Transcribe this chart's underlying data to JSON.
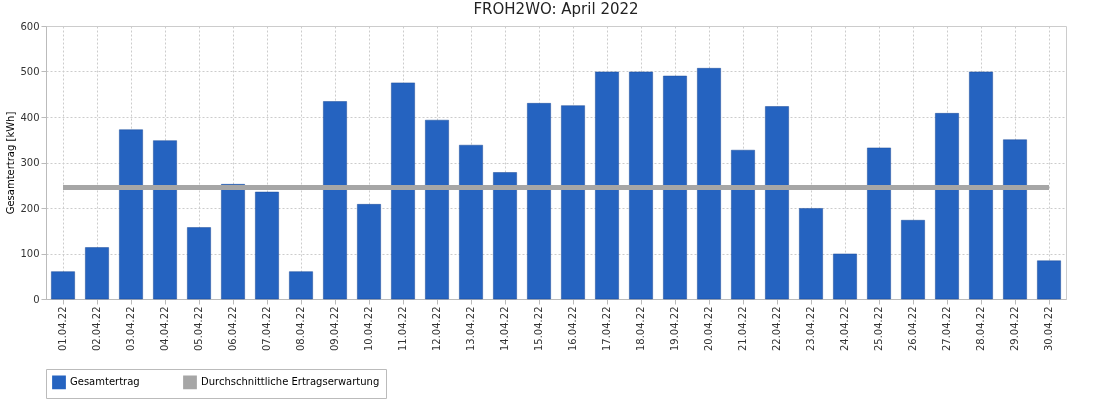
{
  "chart_data": {
    "type": "bar",
    "title": "FROH2WO: April 2022",
    "ylabel": "Gesamtertrag [kWh]",
    "categories": [
      "01.04.22",
      "02.04.22",
      "03.04.22",
      "04.04.22",
      "05.04.22",
      "06.04.22",
      "07.04.22",
      "08.04.22",
      "09.04.22",
      "10.04.22",
      "11.04.22",
      "12.04.22",
      "13.04.22",
      "14.04.22",
      "15.04.22",
      "16.04.22",
      "17.04.22",
      "18.04.22",
      "19.04.22",
      "20.04.22",
      "21.04.22",
      "22.04.22",
      "23.04.22",
      "24.04.22",
      "25.04.22",
      "26.04.22",
      "27.04.22",
      "28.04.22",
      "29.04.22",
      "30.04.22"
    ],
    "series": [
      {
        "name": "Gesamtertrag",
        "color": "#2563c0",
        "values": [
          60,
          113,
          372,
          348,
          157,
          252,
          235,
          60,
          434,
          208,
          475,
          393,
          338,
          278,
          430,
          425,
          499,
          499,
          490,
          507,
          327,
          423,
          199,
          99,
          332,
          173,
          408,
          499,
          350,
          84
        ]
      },
      {
        "name": "Durchschnittliche Ertragserwartung",
        "type": "line",
        "color": "#a6a6a6",
        "values": [
          245,
          245,
          245,
          245,
          245,
          245,
          245,
          245,
          245,
          245,
          245,
          245,
          245,
          245,
          245,
          245,
          245,
          245,
          245,
          245,
          245,
          245,
          245,
          245,
          245,
          245,
          245,
          245,
          245,
          245
        ]
      }
    ],
    "ylim": [
      0,
      600
    ],
    "yticks": [
      0,
      100,
      200,
      300,
      400,
      500,
      600
    ],
    "grid": true,
    "legend": "bottom"
  }
}
